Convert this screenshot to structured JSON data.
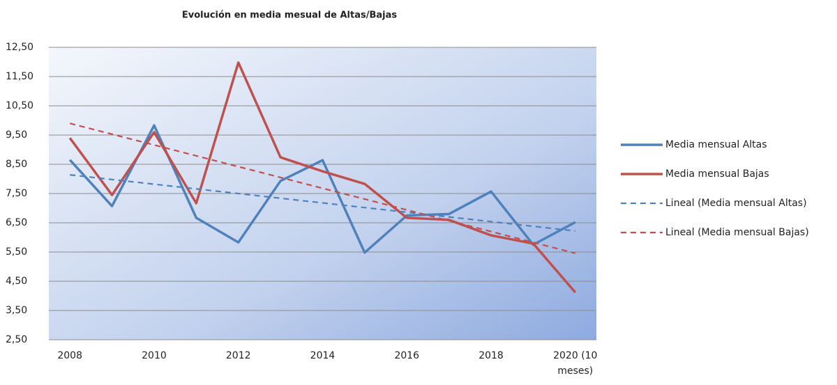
{
  "chart_data": {
    "type": "line",
    "title": "Evolución en media mesual de Altas/Bajas",
    "categories": [
      "2008",
      null,
      "2010",
      null,
      "2012",
      null,
      "2014",
      null,
      "2016",
      null,
      "2018",
      null,
      "2020 (10 meses)"
    ],
    "series": [
      {
        "name": "Media mensual Altas",
        "color": "#4f81bd",
        "dash": false,
        "values": [
          8.65,
          7.07,
          9.83,
          6.67,
          5.83,
          7.93,
          8.64,
          5.48,
          6.75,
          6.8,
          7.57,
          5.75,
          6.52
        ]
      },
      {
        "name": "Media mensual Bajas",
        "color": "#c0504d",
        "dash": false,
        "values": [
          9.4,
          7.45,
          9.6,
          7.17,
          11.98,
          8.74,
          8.26,
          7.83,
          6.67,
          6.6,
          6.07,
          5.79,
          4.12
        ]
      },
      {
        "name": "Lineal (Media mensual Altas)",
        "color": "#4f81bd",
        "dash": true,
        "values": [
          8.14,
          7.98,
          7.82,
          7.66,
          7.5,
          7.34,
          7.18,
          7.02,
          6.86,
          6.7,
          6.54,
          6.38,
          6.22
        ]
      },
      {
        "name": "Lineal (Media mensual Bajas)",
        "color": "#c0504d",
        "dash": true,
        "values": [
          9.9,
          9.53,
          9.16,
          8.79,
          8.42,
          8.05,
          7.68,
          7.31,
          6.94,
          6.57,
          6.2,
          5.83,
          5.46
        ]
      }
    ],
    "ylim": [
      2.5,
      12.5
    ],
    "yticks": [
      {
        "value": 2.5,
        "label": "2,50"
      },
      {
        "value": 3.5,
        "label": "3,50"
      },
      {
        "value": 4.5,
        "label": "4,50"
      },
      {
        "value": 5.5,
        "label": "5,50"
      },
      {
        "value": 6.5,
        "label": "6,50"
      },
      {
        "value": 7.5,
        "label": "7,50"
      },
      {
        "value": 8.5,
        "label": "8,50"
      },
      {
        "value": 9.5,
        "label": "9,50"
      },
      {
        "value": 10.5,
        "label": "10,50"
      },
      {
        "value": 11.5,
        "label": "11,50"
      },
      {
        "value": 12.5,
        "label": "12,50"
      }
    ],
    "grid": true,
    "legend": "right"
  }
}
